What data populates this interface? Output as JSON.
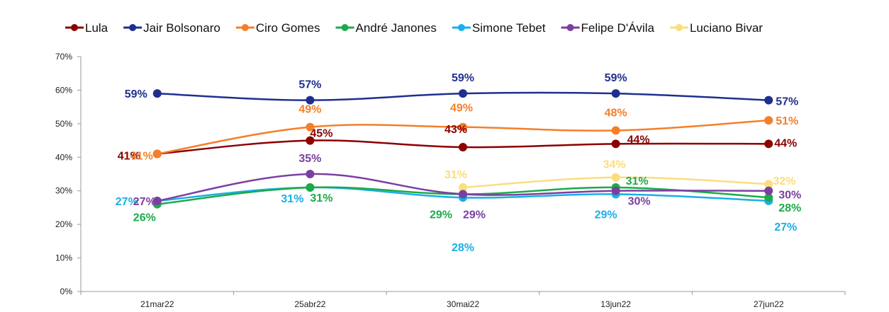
{
  "chart_data": {
    "type": "line",
    "title": "",
    "xlabel": "",
    "ylabel": "",
    "categories": [
      "21mar22",
      "25abr22",
      "30mai22",
      "13jun22",
      "27jun22"
    ],
    "ylim": [
      0,
      70
    ],
    "yticks": [
      0,
      10,
      20,
      30,
      40,
      50,
      60,
      70
    ],
    "ytick_labels": [
      "0%",
      "10%",
      "20%",
      "30%",
      "40%",
      "50%",
      "60%",
      "70%"
    ],
    "value_suffix": "%",
    "grid": false,
    "legend_position": "top",
    "series": [
      {
        "name": "Lula",
        "color": "#8B0000",
        "values": [
          41,
          45,
          43,
          44,
          44
        ],
        "labels": [
          "41%",
          "45%",
          "43%",
          "44%",
          "44%"
        ]
      },
      {
        "name": "Jair Bolsonaro",
        "color": "#1F2F8F",
        "values": [
          59,
          57,
          59,
          59,
          57
        ],
        "labels": [
          "59%",
          "57%",
          "59%",
          "59%",
          "57%"
        ]
      },
      {
        "name": "Ciro Gomes",
        "color": "#F47F2A",
        "values": [
          41,
          49,
          49,
          48,
          51
        ],
        "labels": [
          "41%",
          "49%",
          "49%",
          "48%",
          "51%"
        ]
      },
      {
        "name": "André Janones",
        "color": "#1DAA4A",
        "values": [
          26,
          31,
          29,
          31,
          28
        ],
        "labels": [
          "26%",
          "31%",
          "29%",
          "31%",
          "28%"
        ]
      },
      {
        "name": "Simone Tebet",
        "color": "#1AAFE6",
        "values": [
          27,
          31,
          28,
          29,
          27
        ],
        "labels": [
          "27%",
          "31%",
          "28%",
          "29%",
          "27%"
        ]
      },
      {
        "name": "Felipe D'Ávila",
        "color": "#7B3FA0",
        "values": [
          27,
          35,
          29,
          30,
          30
        ],
        "labels": [
          "27%",
          "35%",
          "29%",
          "30%",
          "30%"
        ]
      },
      {
        "name": "Luciano Bivar",
        "color": "#FBDD7E",
        "values": [
          null,
          null,
          31,
          34,
          32
        ],
        "labels": [
          null,
          null,
          "31%",
          "34%",
          "32%"
        ]
      }
    ]
  }
}
